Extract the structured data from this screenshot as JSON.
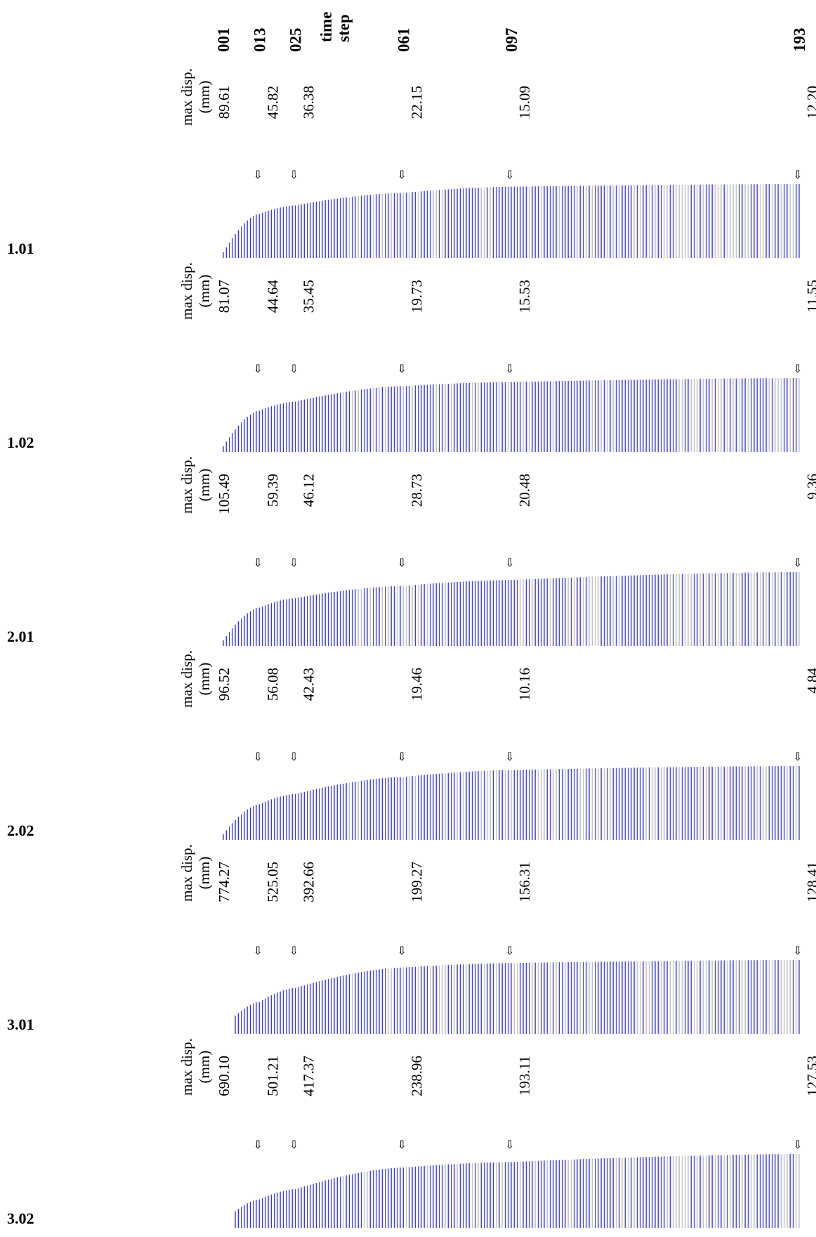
{
  "header": {
    "row1": "time",
    "row2": "step"
  },
  "steps": [
    "001",
    "013",
    "025",
    "061",
    "097",
    "193"
  ],
  "colors": {
    "bar_primary": "#2222dd",
    "bar_secondary": "#b4b4b4",
    "text": "#000000"
  },
  "panel_label_line1": "max disp.",
  "panel_label_line2": "(mm)",
  "arrow_glyph": "⇩",
  "chart_data": [
    {
      "type": "bar",
      "row": "1.01",
      "ylabel": "max disp. (mm)",
      "annotated_steps": [
        "001",
        "013",
        "025",
        "061",
        "097",
        "193"
      ],
      "annotated_values": [
        89.61,
        45.82,
        36.38,
        22.15,
        15.09,
        12.2
      ],
      "annotation_labels": [
        "89.61",
        "45.82",
        "36.38",
        "22.15",
        "15.09",
        "12.20"
      ],
      "x_range": [
        1,
        193
      ]
    },
    {
      "type": "bar",
      "row": "1.02",
      "ylabel": "max disp. (mm)",
      "annotated_steps": [
        "001",
        "013",
        "025",
        "061",
        "097",
        "193"
      ],
      "annotated_values": [
        81.07,
        44.64,
        35.45,
        19.73,
        15.53,
        11.55
      ],
      "annotation_labels": [
        "81.07",
        "44.64",
        "35.45",
        "19.73",
        "15.53",
        "11.55"
      ],
      "x_range": [
        1,
        193
      ]
    },
    {
      "type": "bar",
      "row": "2.01",
      "ylabel": "max disp. (mm)",
      "annotated_steps": [
        "001",
        "013",
        "025",
        "061",
        "097",
        "193"
      ],
      "annotated_values": [
        105.49,
        59.39,
        46.12,
        28.73,
        20.48,
        9.36
      ],
      "annotation_labels": [
        "105.49",
        "59.39",
        "46.12",
        "28.73",
        "20.48",
        "9.36"
      ],
      "x_range": [
        1,
        193
      ]
    },
    {
      "type": "bar",
      "row": "2.02",
      "ylabel": "max disp. (mm)",
      "annotated_steps": [
        "001",
        "013",
        "025",
        "061",
        "097",
        "193"
      ],
      "annotated_values": [
        96.52,
        56.08,
        42.43,
        19.46,
        10.16,
        4.84
      ],
      "annotation_labels": [
        "96.52",
        "56.08",
        "42.43",
        "19.46",
        "10.16",
        "4.84"
      ],
      "x_range": [
        1,
        193
      ]
    },
    {
      "type": "bar",
      "row": "3.01",
      "ylabel": "max disp. (mm)",
      "annotated_steps": [
        "001",
        "013",
        "025",
        "061",
        "097",
        "193"
      ],
      "annotated_values": [
        774.27,
        525.05,
        392.66,
        199.27,
        156.31,
        128.41
      ],
      "annotation_labels": [
        "774.27",
        "525.05",
        "392.66",
        "199.27",
        "156.31",
        "128.41"
      ],
      "x_range": [
        1,
        193
      ]
    },
    {
      "type": "bar",
      "row": "3.02",
      "ylabel": "max disp. (mm)",
      "annotated_steps": [
        "001",
        "013",
        "025",
        "061",
        "097",
        "193"
      ],
      "annotated_values": [
        690.1,
        501.21,
        417.37,
        238.96,
        193.11,
        127.53
      ],
      "annotation_labels": [
        "690.10",
        "501.21",
        "417.37",
        "238.96",
        "193.11",
        "127.53"
      ],
      "x_range": [
        1,
        193
      ]
    }
  ]
}
